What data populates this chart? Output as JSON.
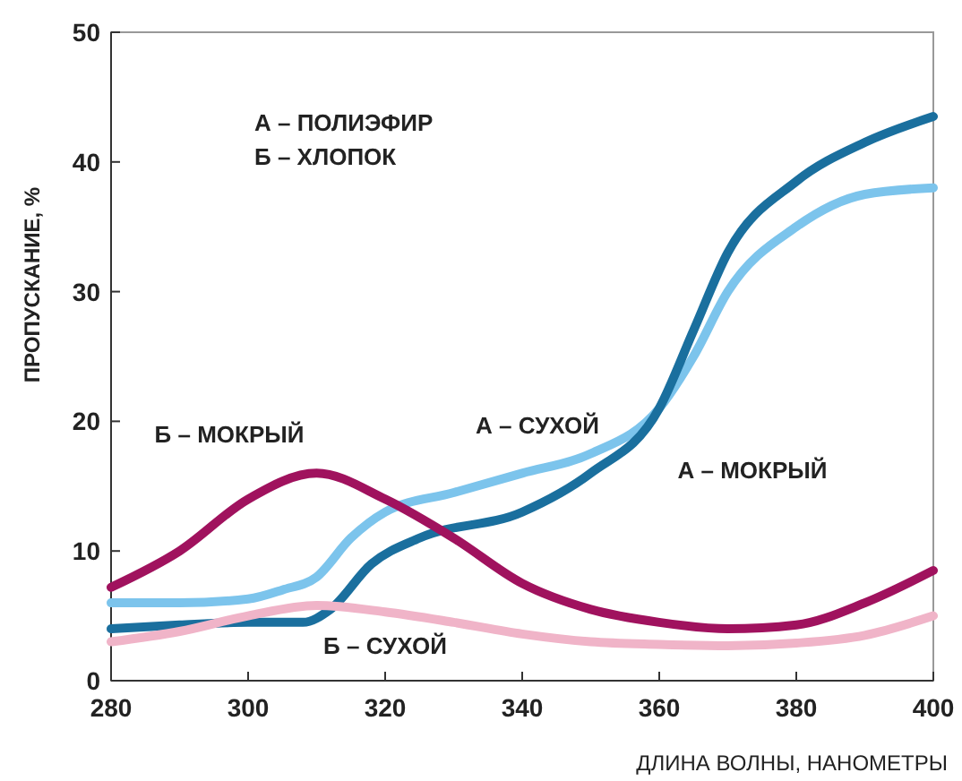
{
  "chart_data": {
    "type": "line",
    "xlabel": "ДЛИНА ВОЛНЫ, НАНОМЕТРЫ",
    "ylabel": "ПРОПУСКАНИЕ, %",
    "xlim": [
      280,
      400
    ],
    "ylim": [
      0,
      50
    ],
    "xticks": [
      280,
      300,
      320,
      340,
      360,
      380,
      400
    ],
    "yticks": [
      0,
      10,
      20,
      30,
      40,
      50
    ],
    "grid": false,
    "marker": "none",
    "line_style": "solid",
    "annotations": [
      "А – ПОЛИЭФИР",
      "Б – ХЛОПОК"
    ],
    "series": [
      {
        "name": "А – СУХОЙ",
        "color": "#7cc4ec",
        "x": [
          280,
          290,
          300,
          305,
          310,
          315,
          320,
          330,
          340,
          350,
          360,
          365,
          370,
          380,
          390,
          400
        ],
        "values": [
          6,
          6,
          6.3,
          7,
          8,
          11,
          13,
          14.5,
          16,
          17.5,
          21,
          25,
          30,
          35,
          37.5,
          38
        ]
      },
      {
        "name": "А – МОКРЫЙ",
        "color": "#1a6f9e",
        "x": [
          280,
          290,
          300,
          308,
          312,
          318,
          325,
          340,
          350,
          360,
          365,
          370,
          380,
          390,
          400
        ],
        "values": [
          4,
          4.3,
          4.5,
          4.5,
          5.5,
          9,
          11,
          13,
          16,
          21,
          27,
          33,
          38.5,
          41.5,
          43.5
        ]
      },
      {
        "name": "Б – МОКРЫЙ",
        "color": "#a0125e",
        "x": [
          280,
          290,
          300,
          310,
          320,
          330,
          340,
          350,
          360,
          370,
          380,
          390,
          400
        ],
        "values": [
          7.2,
          10,
          14,
          16,
          14,
          11,
          7.5,
          5.5,
          4.5,
          4,
          4.3,
          6,
          8.5
        ]
      },
      {
        "name": "Б – СУХОЙ",
        "color": "#f0b4c8",
        "x": [
          280,
          290,
          300,
          310,
          320,
          330,
          340,
          350,
          360,
          370,
          380,
          390,
          400
        ],
        "values": [
          3,
          3.8,
          5,
          5.8,
          5.3,
          4.5,
          3.6,
          3,
          2.8,
          2.7,
          2.9,
          3.5,
          5
        ]
      }
    ]
  }
}
